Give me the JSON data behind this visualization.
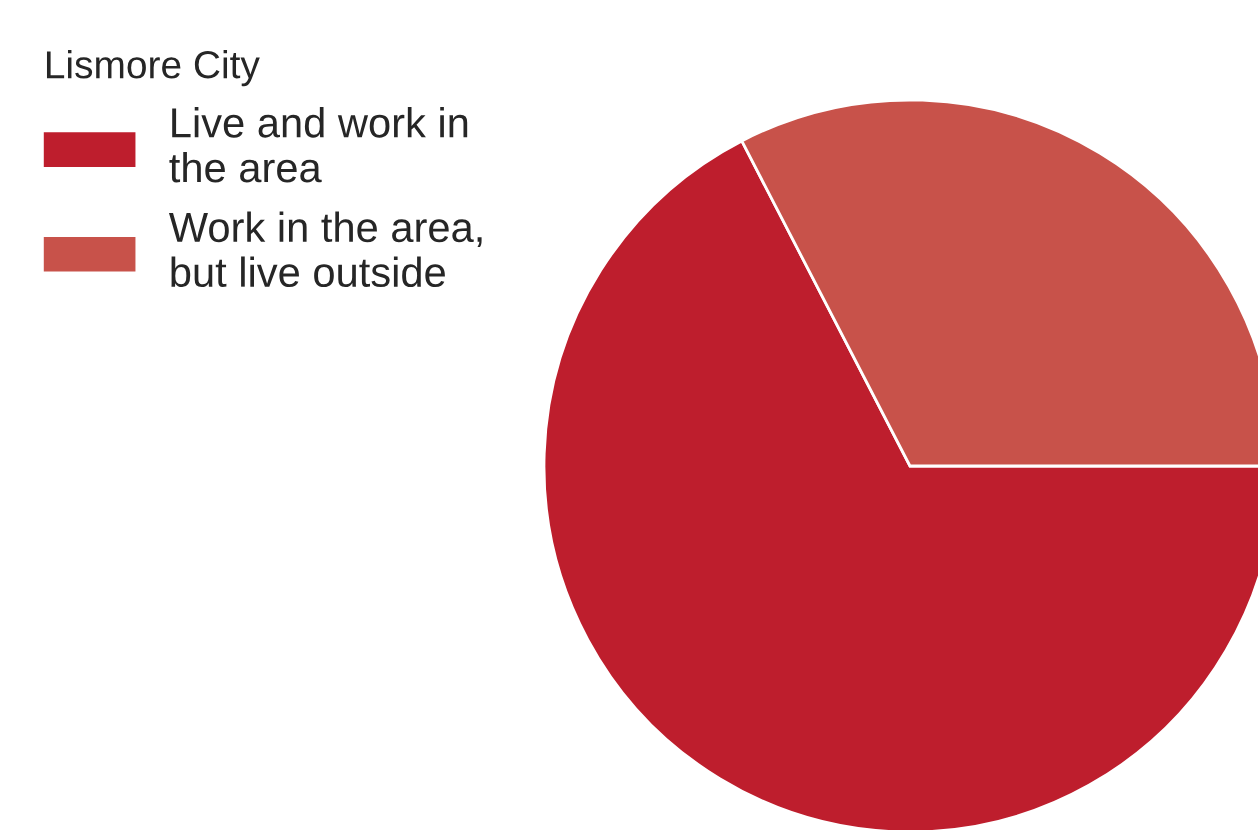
{
  "chart_data": {
    "type": "pie",
    "legend_title": "Lismore City",
    "legend": "top left",
    "categories": [
      "Live and work in the area",
      "Work in the area, but live outside"
    ],
    "values": [
      67.4,
      32.6
    ],
    "colors": [
      "#be1e2d",
      "#c8524a"
    ]
  }
}
